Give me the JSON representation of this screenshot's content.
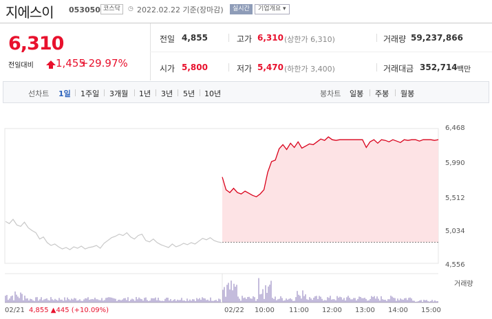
{
  "header": {
    "name": "지에스이",
    "code": "053050",
    "market": "코스닥",
    "clock_icon": "clock-icon",
    "date_text": "2022.02.22 기준(장마감)",
    "realtime_label": "실시간",
    "company_button": "기업개요 ▾"
  },
  "summary": {
    "price": "6,310",
    "change_label": "전일대비",
    "change_value": "1,455",
    "change_pct": "+29.97%",
    "prev_label": "전일",
    "prev_value": "4,855",
    "high_label": "고가",
    "high_value": "6,310",
    "high_sub": "(상한가 6,310)",
    "volume_label": "거래량",
    "volume_value": "59,237,866",
    "open_label": "시가",
    "open_value": "5,800",
    "low_label": "저가",
    "low_value": "5,470",
    "low_sub": "(하한가 3,400)",
    "amount_label": "거래대금",
    "amount_value": "352,714",
    "amount_unit": "백만"
  },
  "tabs": {
    "line_label": "선차트",
    "line_items": [
      "1일",
      "1주일",
      "3개월",
      "1년",
      "3년",
      "5년",
      "10년"
    ],
    "candle_label": "봉차트",
    "candle_items": [
      "일봉",
      "주봉",
      "월봉"
    ],
    "selected": "1일"
  },
  "chart_data": {
    "type": "line",
    "y_ticks": [
      "6,468",
      "5,990",
      "5,512",
      "5,034",
      "4,556"
    ],
    "x_ticks": [
      "02/21",
      "02/22",
      "10:00",
      "11:00",
      "12:00",
      "13:00",
      "14:00",
      "15:00"
    ],
    "ylim": [
      4556,
      6468
    ],
    "prev_close": 4855,
    "series": [
      {
        "values": [
          5150,
          5120,
          5180,
          5100,
          5080,
          5140,
          5060,
          5020,
          4990,
          4900,
          4930,
          4850,
          4810,
          4830,
          4790,
          4760,
          4780,
          4750,
          4790,
          4770,
          4800,
          4760,
          4780,
          4790,
          4810,
          4770,
          4840,
          4880,
          4920,
          4940,
          4970,
          4950,
          4990,
          4930,
          4900,
          4950,
          4970,
          4880,
          4860,
          4900,
          4850,
          4820,
          4800,
          4780,
          4830,
          4790,
          4810,
          4840,
          4820,
          4850,
          4830,
          4870,
          4910,
          4890,
          4920,
          4880,
          4860,
          4850
        ]
      },
      {
        "values": [
          5780,
          5600,
          5560,
          5620,
          5560,
          5540,
          5580,
          5550,
          5520,
          5500,
          5540,
          5600,
          5850,
          6000,
          6020,
          6180,
          6240,
          6170,
          6260,
          6200,
          6280,
          6190,
          6220,
          6250,
          6240,
          6280,
          6320,
          6300,
          6350,
          6310,
          6300,
          6310,
          6310,
          6310,
          6310,
          6310,
          6310,
          6310,
          6200,
          6280,
          6310,
          6260,
          6310,
          6300,
          6280,
          6310,
          6290,
          6270,
          6310,
          6300,
          6310,
          6310,
          6290,
          6310,
          6310,
          6310,
          6300,
          6310
        ]
      }
    ],
    "volume_legend": "거래량",
    "footer_left": "4,855 ▲445 (+10.09%)"
  },
  "colors": {
    "up": "#e8112d",
    "fill": "#fde3e5",
    "line": "#d9001a",
    "prev": "#c8c8c8",
    "volume": "#8a78b8"
  }
}
